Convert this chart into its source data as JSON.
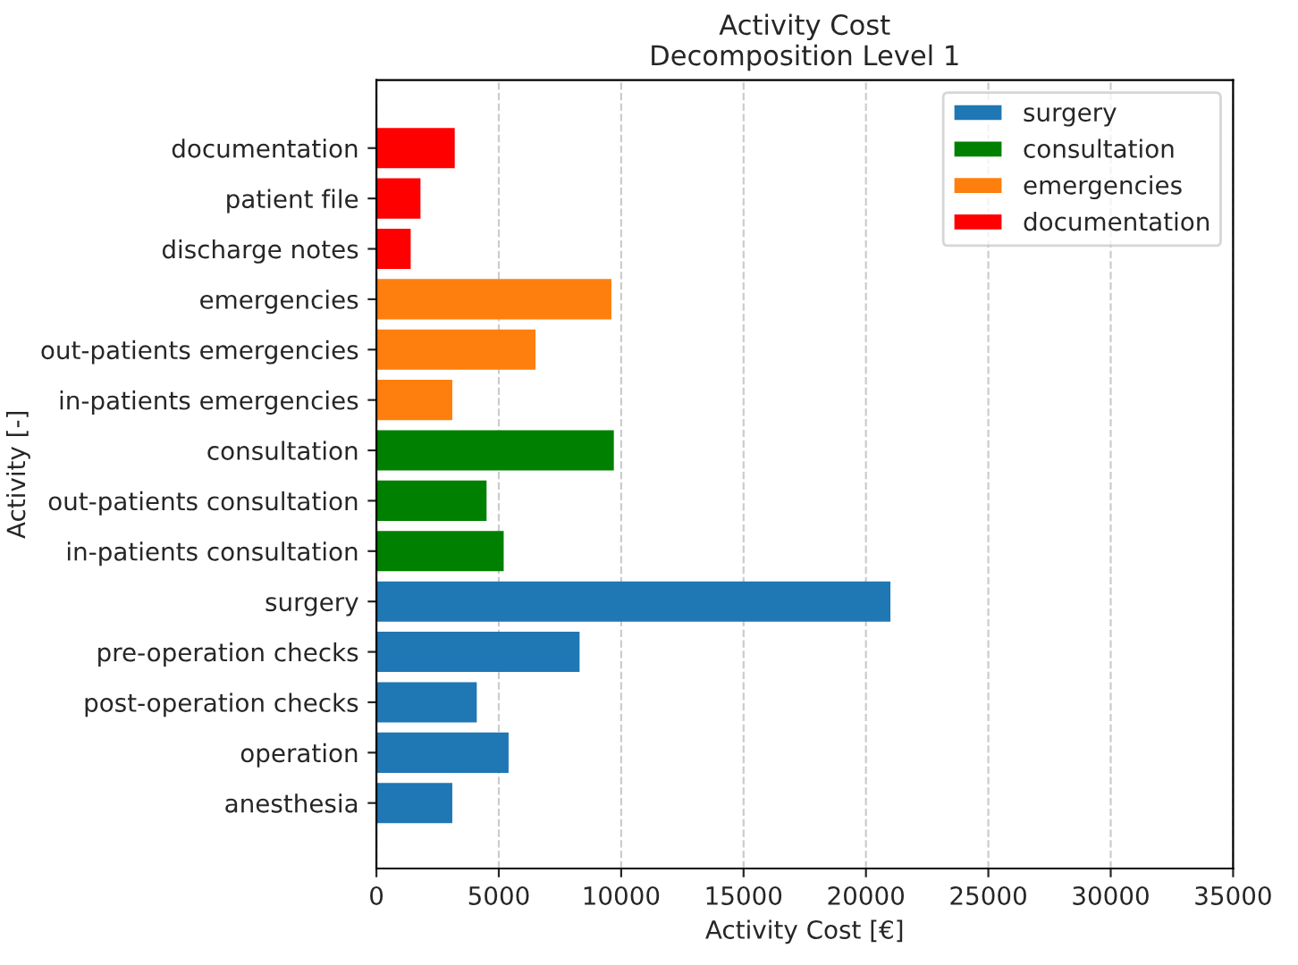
{
  "chart_data": {
    "type": "bar",
    "orientation": "horizontal",
    "title": "Activity Cost\nDecomposition Level 1",
    "xlabel": "Activity Cost [€]",
    "ylabel": "Activity [-]",
    "categories": [
      "documentation",
      "patient file",
      "discharge notes",
      "emergencies",
      "out-patients emergencies",
      "in-patients emergencies",
      "consultation",
      "out-patients consultation",
      "in-patients consultation",
      "surgery",
      "pre-operation checks",
      "post-operation checks",
      "operation",
      "anesthesia"
    ],
    "series": [
      {
        "name": "surgery",
        "color": "#1f77b4",
        "values": [
          null,
          null,
          null,
          null,
          null,
          null,
          null,
          null,
          null,
          21000,
          8300,
          4100,
          5400,
          3100
        ]
      },
      {
        "name": "consultation",
        "color": "#008000",
        "values": [
          null,
          null,
          null,
          null,
          null,
          null,
          9700,
          4500,
          5200,
          null,
          null,
          null,
          null,
          null
        ]
      },
      {
        "name": "emergencies",
        "color": "#ff7f0e",
        "values": [
          null,
          null,
          null,
          9600,
          6500,
          3100,
          null,
          null,
          null,
          null,
          null,
          null,
          null,
          null
        ]
      },
      {
        "name": "documentation",
        "color": "#ff0000",
        "values": [
          3200,
          1800,
          1400,
          null,
          null,
          null,
          null,
          null,
          null,
          null,
          null,
          null,
          null,
          null
        ]
      }
    ],
    "xlim": [
      0,
      35000
    ],
    "xticks": [
      0,
      5000,
      10000,
      15000,
      20000,
      25000,
      30000,
      35000
    ],
    "grid": "x",
    "legend": "top right"
  }
}
